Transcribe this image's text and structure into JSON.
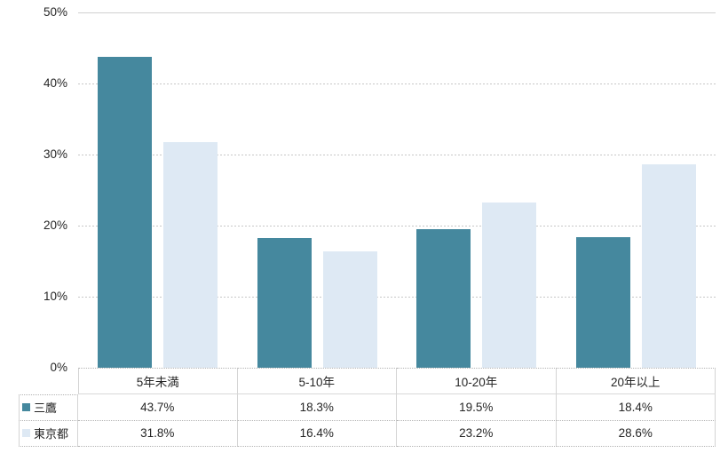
{
  "chart_data": {
    "type": "bar",
    "categories": [
      "5年未満",
      "5-10年",
      "10-20年",
      "20年以上"
    ],
    "series": [
      {
        "name": "三鷹",
        "color": "#45889e",
        "values": [
          43.7,
          18.3,
          19.5,
          18.4
        ]
      },
      {
        "name": "東京都",
        "color": "#dee9f4",
        "values": [
          31.8,
          16.4,
          23.2,
          28.6
        ]
      }
    ],
    "title": "",
    "xlabel": "",
    "ylabel": "",
    "ylim": [
      0,
      50
    ],
    "yticks": [
      0,
      10,
      20,
      30,
      40,
      50
    ],
    "ytick_labels": [
      "0%",
      "10%",
      "20%",
      "30%",
      "40%",
      "50%"
    ],
    "grid": "horizontal-dashed",
    "legend_position": "table-row-headers",
    "value_suffix": "%",
    "table_values": [
      [
        "43.7%",
        "18.3%",
        "19.5%",
        "18.4%"
      ],
      [
        "31.8%",
        "16.4%",
        "23.2%",
        "28.6%"
      ]
    ]
  },
  "colors": {
    "series1": "#45889e",
    "series2": "#dee9f4",
    "gridline": "#c7c7c7",
    "table_border": "#d4d4d4",
    "text": "#262626"
  }
}
